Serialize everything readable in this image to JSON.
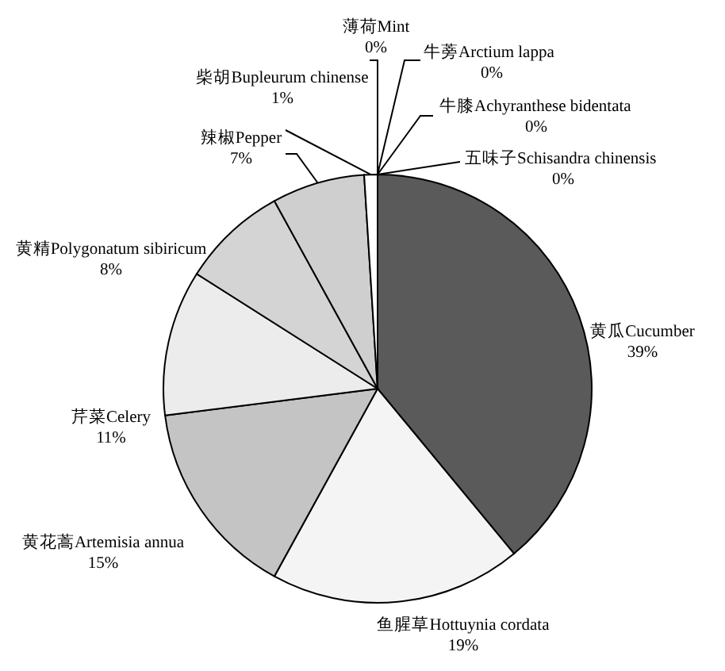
{
  "chart_data": {
    "type": "pie",
    "categories": [
      "黄瓜Cucumber",
      "鱼腥草Hottuynia cordata",
      "黄花蒿Artemisia annua",
      "芹菜Celery",
      "黄精Polygonatum sibiricum",
      "辣椒Pepper",
      "柴胡Bupleurum chinense",
      "薄荷Mint",
      "牛蒡Arctium lappa",
      "牛膝Achyranthese bidentata",
      "五味子Schisandra chinensis"
    ],
    "values": [
      39,
      19,
      15,
      11,
      8,
      7,
      1,
      0,
      0,
      0,
      0
    ],
    "value_labels": [
      "39%",
      "19%",
      "15%",
      "11%",
      "8%",
      "7%",
      "1%",
      "0%",
      "0%",
      "0%",
      "0%"
    ],
    "colors": [
      "#5a5a5a",
      "#f4f4f4",
      "#c4c4c4",
      "#ececec",
      "#d4d4d4",
      "#cfcfcf",
      "#ffffff",
      "#ffffff",
      "#ffffff",
      "#ffffff",
      "#ffffff"
    ]
  }
}
